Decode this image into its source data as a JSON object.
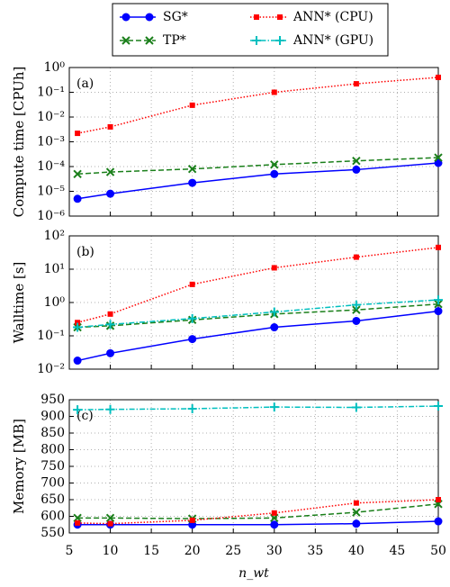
{
  "chart_data": [
    {
      "type": "line",
      "annotation": "(a)",
      "ylabel": "Compute time [CPUh]",
      "log": true,
      "grid": true,
      "xlim": [
        5,
        50
      ],
      "xticks": [
        5,
        10,
        15,
        20,
        25,
        30,
        35,
        40,
        45,
        50
      ],
      "ylim": [
        1e-06,
        1
      ],
      "yticks": [
        {
          "value": 1e-06,
          "label": "10⁻⁶"
        },
        {
          "value": 1e-05,
          "label": "10⁻⁵"
        },
        {
          "value": 0.0001,
          "label": "10⁻⁴"
        },
        {
          "value": 0.001,
          "label": "10⁻³"
        },
        {
          "value": 0.01,
          "label": "10⁻²"
        },
        {
          "value": 0.1,
          "label": "10⁻¹"
        },
        {
          "value": 1,
          "label": "10⁰"
        }
      ],
      "x": [
        6,
        10,
        20,
        30,
        40,
        50
      ],
      "series": [
        {
          "color": "#0000ff",
          "linestyle": "solid",
          "marker": "circle",
          "values": [
            5e-06,
            8e-06,
            2.2e-05,
            5e-05,
            7.5e-05,
            0.00014
          ]
        },
        {
          "color": "#1a7f1a",
          "linestyle": "dashed",
          "marker": "x",
          "values": [
            5e-05,
            6e-05,
            8e-05,
            0.00012,
            0.00017,
            0.00023
          ]
        },
        {
          "color": "#ff0000",
          "linestyle": "dotted",
          "marker": "square",
          "values": [
            0.0022,
            0.004,
            0.03,
            0.1,
            0.22,
            0.4
          ]
        }
      ]
    },
    {
      "type": "line",
      "annotation": "(b)",
      "ylabel": "Walltime [s]",
      "log": true,
      "grid": true,
      "xlim": [
        5,
        50
      ],
      "xticks": [
        5,
        10,
        15,
        20,
        25,
        30,
        35,
        40,
        45,
        50
      ],
      "ylim": [
        0.01,
        100
      ],
      "yticks": [
        {
          "value": 0.01,
          "label": "10⁻²"
        },
        {
          "value": 0.1,
          "label": "10⁻¹"
        },
        {
          "value": 1,
          "label": "10⁰"
        },
        {
          "value": 10,
          "label": "10¹"
        },
        {
          "value": 100,
          "label": "10²"
        }
      ],
      "x": [
        6,
        10,
        20,
        30,
        40,
        50
      ],
      "series": [
        {
          "name": "SG*",
          "color": "#0000ff",
          "linestyle": "solid",
          "marker": "circle",
          "values": [
            0.018,
            0.03,
            0.08,
            0.18,
            0.28,
            0.55
          ]
        },
        {
          "name": "TP*",
          "color": "#1a7f1a",
          "linestyle": "dashed",
          "marker": "x",
          "values": [
            0.18,
            0.2,
            0.3,
            0.45,
            0.6,
            0.9
          ]
        },
        {
          "name": "ANN* (CPU)",
          "color": "#ff0000",
          "linestyle": "dotted",
          "marker": "square",
          "values": [
            0.25,
            0.45,
            3.5,
            11,
            23,
            45
          ]
        },
        {
          "name": "ANN* (GPU)",
          "color": "#00bfbf",
          "linestyle": "dashdot",
          "marker": "plus",
          "values": [
            0.18,
            0.22,
            0.33,
            0.52,
            0.85,
            1.2
          ]
        }
      ]
    },
    {
      "type": "line",
      "annotation": "(c)",
      "ylabel": "Memory [MB]",
      "xlabel": "n_wt",
      "log": false,
      "grid": true,
      "xlim": [
        5,
        50
      ],
      "xticks": [
        5,
        10,
        15,
        20,
        25,
        30,
        35,
        40,
        45,
        50
      ],
      "ylim": [
        550,
        950
      ],
      "yticks": [
        550,
        600,
        650,
        700,
        750,
        800,
        850,
        900,
        950
      ],
      "x": [
        6,
        10,
        20,
        30,
        40,
        50
      ],
      "series": [
        {
          "color": "#0000ff",
          "linestyle": "solid",
          "marker": "circle",
          "values": [
            575,
            575,
            575,
            575,
            578,
            585
          ]
        },
        {
          "color": "#1a7f1a",
          "linestyle": "dashed",
          "marker": "x",
          "values": [
            595,
            595,
            593,
            595,
            612,
            637
          ]
        },
        {
          "color": "#ff0000",
          "linestyle": "dotted",
          "marker": "square",
          "values": [
            580,
            578,
            588,
            610,
            640,
            650
          ]
        },
        {
          "color": "#00bfbf",
          "linestyle": "dashdot",
          "marker": "plus",
          "values": [
            920,
            921,
            923,
            928,
            927,
            931
          ]
        }
      ]
    }
  ]
}
